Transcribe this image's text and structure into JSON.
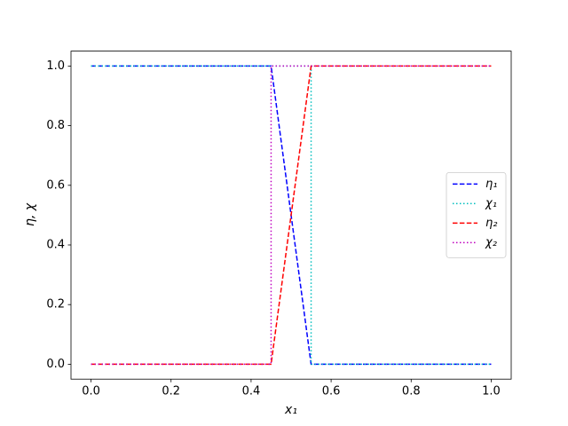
{
  "chart_data": {
    "type": "line",
    "xlabel": "x₁",
    "ylabel": "η, χ",
    "xlim": [
      -0.05,
      1.05
    ],
    "ylim": [
      -0.05,
      1.05
    ],
    "xticks": [
      {
        "value": 0,
        "label": "0.0"
      },
      {
        "value": 0.2,
        "label": "0.2"
      },
      {
        "value": 0.4,
        "label": "0.4"
      },
      {
        "value": 0.6,
        "label": "0.6"
      },
      {
        "value": 0.8,
        "label": "0.8"
      },
      {
        "value": 1,
        "label": "1.0"
      }
    ],
    "yticks": [
      {
        "value": 0,
        "label": "0.0"
      },
      {
        "value": 0.2,
        "label": "0.2"
      },
      {
        "value": 0.4,
        "label": "0.4"
      },
      {
        "value": 0.6,
        "label": "0.6"
      },
      {
        "value": 0.8,
        "label": "0.8"
      },
      {
        "value": 1,
        "label": "1.0"
      }
    ],
    "legend": "center right",
    "series": [
      {
        "name": "η₁",
        "color": "#0000ff",
        "linestyle": "dashed",
        "x": [
          0,
          0.45,
          0.55,
          1
        ],
        "values": [
          1,
          1,
          0,
          0
        ]
      },
      {
        "name": "χ₁",
        "color": "#00bfbf",
        "linestyle": "dotted",
        "x": [
          0,
          0.55,
          0.55,
          1
        ],
        "values": [
          1,
          1,
          0,
          0
        ]
      },
      {
        "name": "η₂",
        "color": "#ff0000",
        "linestyle": "dashed",
        "x": [
          0,
          0.45,
          0.55,
          1
        ],
        "values": [
          0,
          0,
          1,
          1
        ]
      },
      {
        "name": "χ₂",
        "color": "#bf00bf",
        "linestyle": "dotted",
        "x": [
          0,
          0.45,
          0.45,
          1
        ],
        "values": [
          0,
          0,
          1,
          1
        ]
      }
    ]
  }
}
